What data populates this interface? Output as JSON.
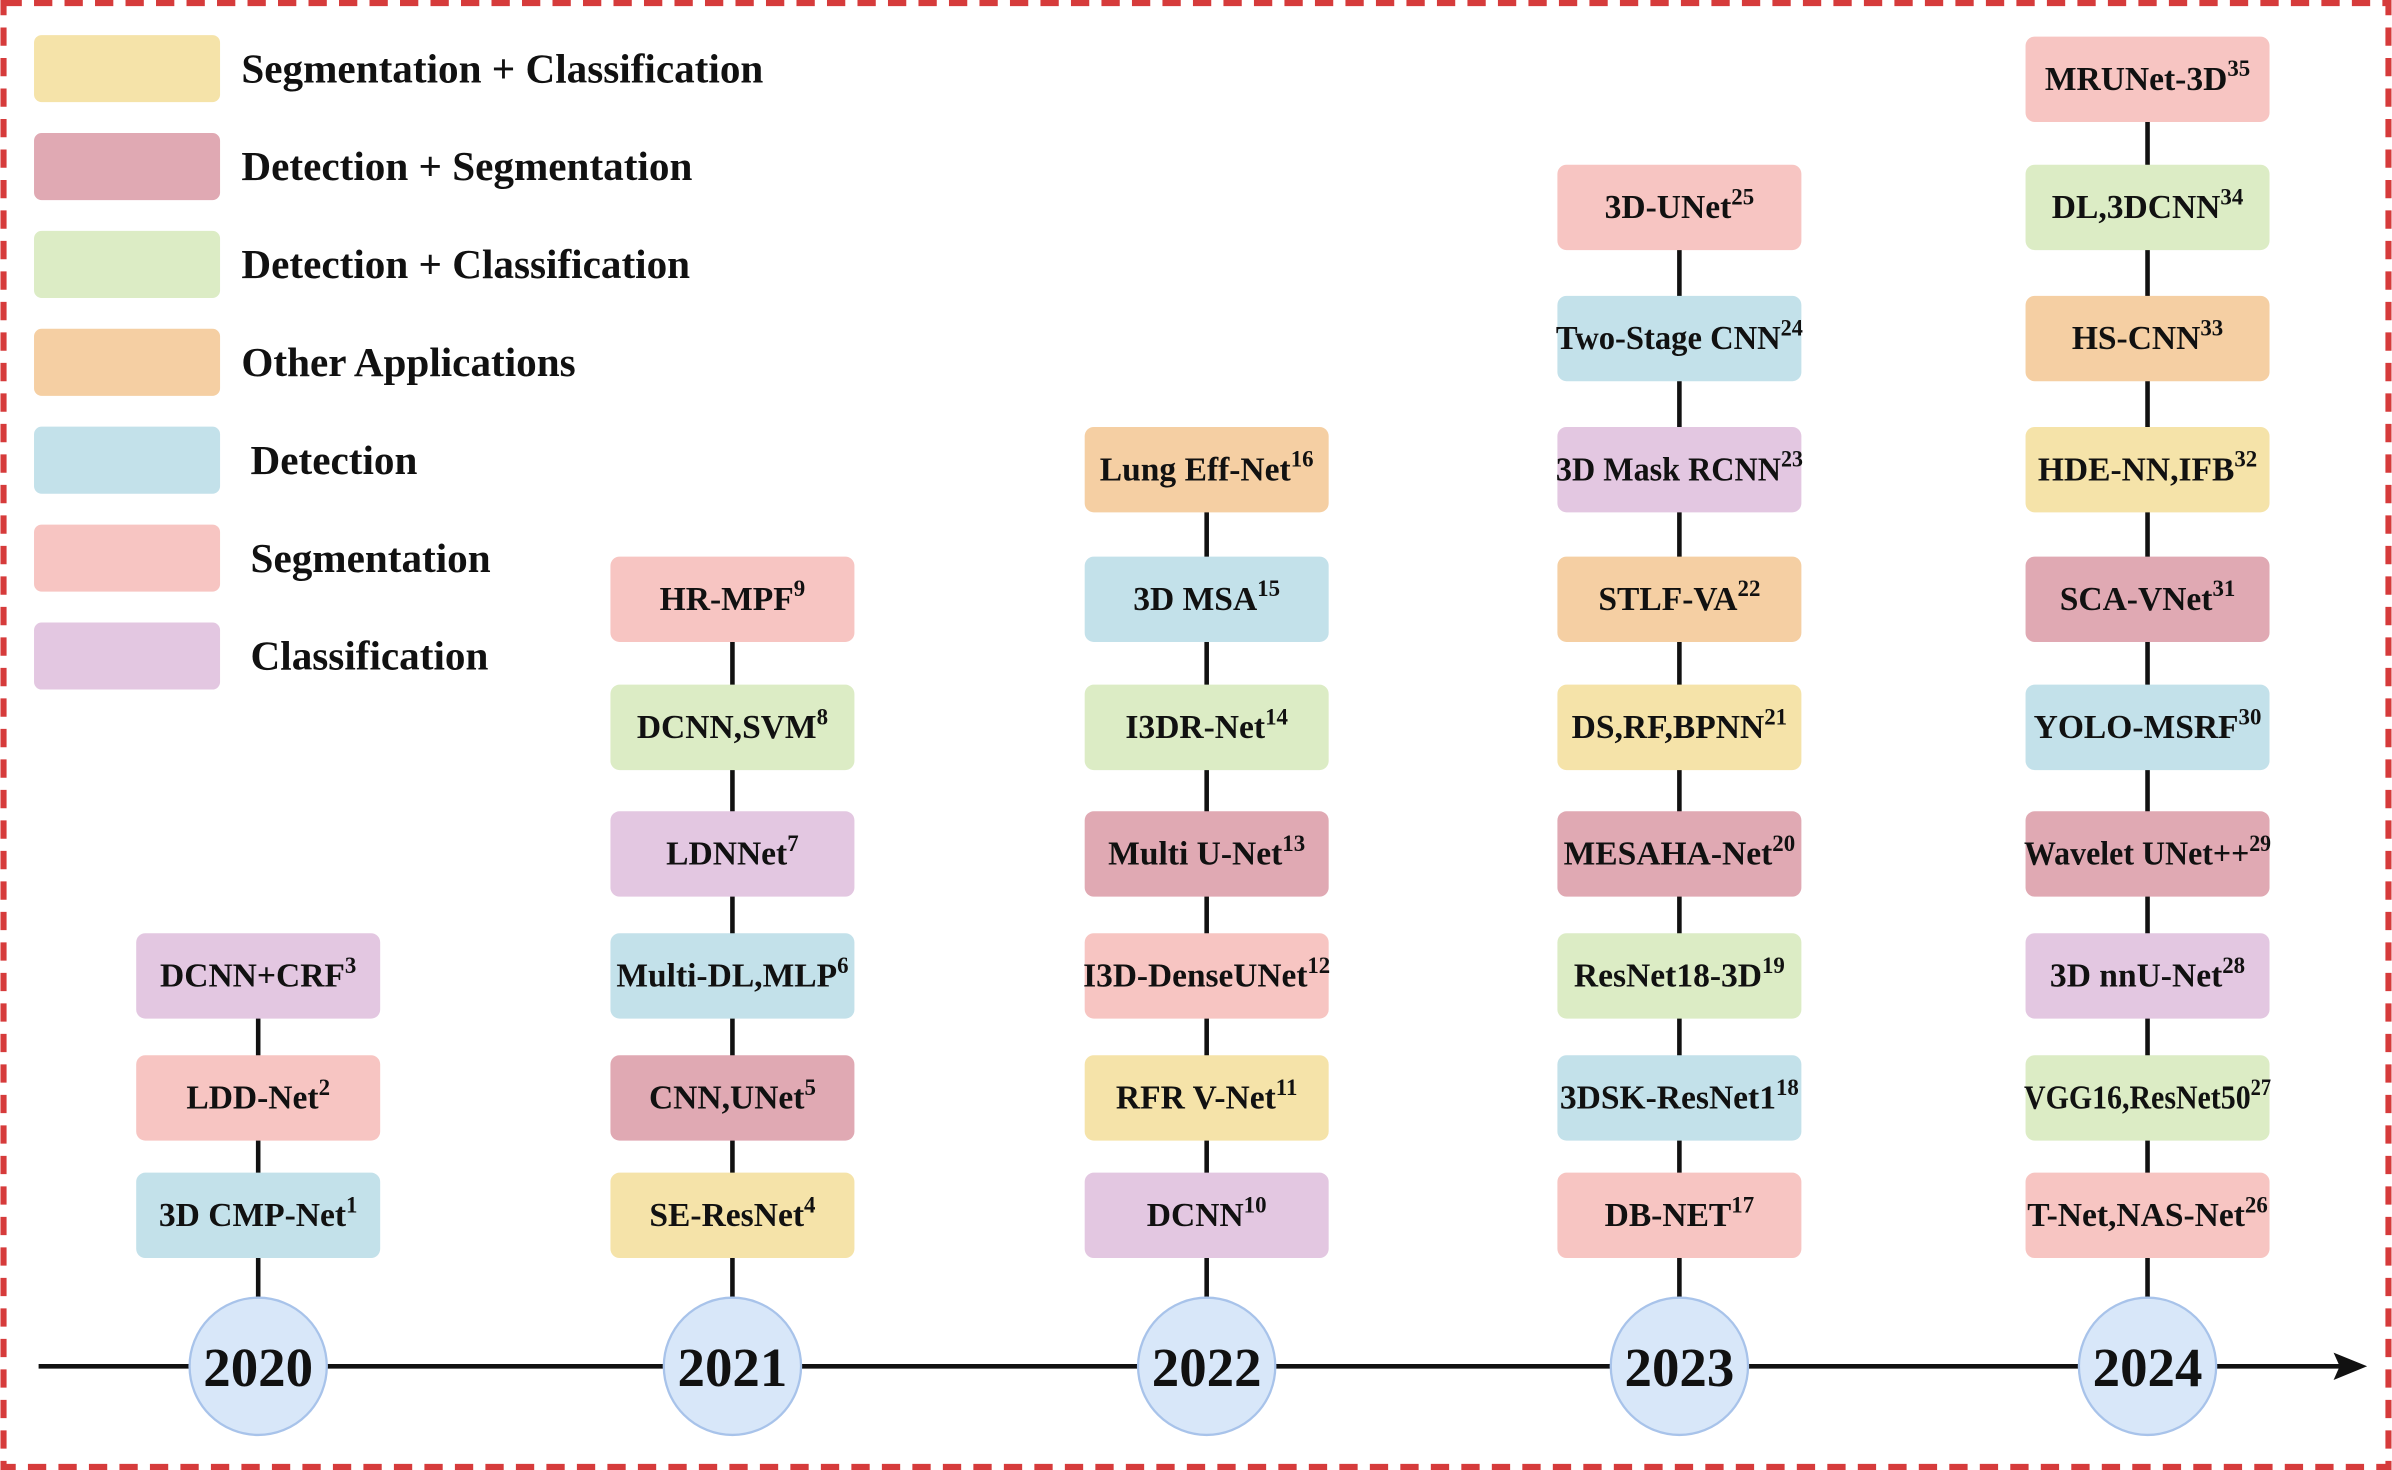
{
  "legend": [
    {
      "label": "Segmentation + Classification",
      "color": "#f5e3a9"
    },
    {
      "label": "Detection + Segmentation",
      "color": "#e0a9b3"
    },
    {
      "label": "Detection + Classification",
      "color": "#dcecc5"
    },
    {
      "label": "Other Applications",
      "color": "#f5cfa3"
    },
    {
      "label": "Detection",
      "color": "#c3e1ea"
    },
    {
      "label": "Segmentation",
      "color": "#f7c5c2"
    },
    {
      "label": "Classification",
      "color": "#e3c7e1"
    }
  ],
  "timeline": [
    {
      "year": "2020",
      "nodes": [
        {
          "label": "3D CMP-Net",
          "ref": 1,
          "color": "#c3e1ea"
        },
        {
          "label": "LDD-Net",
          "ref": 2,
          "color": "#f7c5c2"
        },
        {
          "label": "DCNN+CRF",
          "ref": 3,
          "color": "#e3c7e1"
        }
      ]
    },
    {
      "year": "2021",
      "nodes": [
        {
          "label": "SE-ResNet",
          "ref": 4,
          "color": "#f5e3a9"
        },
        {
          "label": "CNN,UNet",
          "ref": 5,
          "color": "#e0a9b3"
        },
        {
          "label": "Multi-DL,MLP",
          "ref": 6,
          "color": "#c3e1ea"
        },
        {
          "label": "LDNNet",
          "ref": 7,
          "color": "#e3c7e1"
        },
        {
          "label": "DCNN,SVM",
          "ref": 8,
          "color": "#dcecc5"
        },
        {
          "label": "HR-MPF",
          "ref": 9,
          "color": "#f7c5c2"
        }
      ]
    },
    {
      "year": "2022",
      "nodes": [
        {
          "label": "DCNN",
          "ref": 10,
          "color": "#e3c7e1"
        },
        {
          "label": "RFR V-Net",
          "ref": 11,
          "color": "#f5e3a9"
        },
        {
          "label": "I3D-DenseUNet",
          "ref": 12,
          "color": "#f7c5c2"
        },
        {
          "label": "Multi U-Net",
          "ref": 13,
          "color": "#e0a9b3"
        },
        {
          "label": "I3DR-Net",
          "ref": 14,
          "color": "#dcecc5"
        },
        {
          "label": "3D MSA",
          "ref": 15,
          "color": "#c3e1ea"
        },
        {
          "label": "Lung Eff-Net",
          "ref": 16,
          "color": "#f5cfa3"
        }
      ]
    },
    {
      "year": "2023",
      "nodes": [
        {
          "label": "DB-NET",
          "ref": 17,
          "color": "#f7c5c2"
        },
        {
          "label": "3DSK-ResNet1",
          "ref": 18,
          "color": "#c3e1ea"
        },
        {
          "label": "ResNet18-3D",
          "ref": 19,
          "color": "#dcecc5"
        },
        {
          "label": "MESAHA-Net",
          "ref": 20,
          "color": "#e0a9b3"
        },
        {
          "label": "DS,RF,BPNN",
          "ref": 21,
          "color": "#f5e3a9"
        },
        {
          "label": "STLF-VA",
          "ref": 22,
          "color": "#f5cfa3"
        },
        {
          "label": "3D Mask RCNN",
          "ref": 23,
          "color": "#e3c7e1"
        },
        {
          "label": "Two-Stage CNN",
          "ref": 24,
          "color": "#c3e1ea"
        },
        {
          "label": "3D-UNet",
          "ref": 25,
          "color": "#f7c5c2"
        }
      ]
    },
    {
      "year": "2024",
      "nodes": [
        {
          "label": "T-Net,NAS-Net",
          "ref": 26,
          "color": "#f7c5c2"
        },
        {
          "label": "VGG16,ResNet50",
          "ref": 27,
          "color": "#dcecc5"
        },
        {
          "label": "3D nnU-Net",
          "ref": 28,
          "color": "#e3c7e1"
        },
        {
          "label": "Wavelet UNet++",
          "ref": 29,
          "color": "#e0a9b3"
        },
        {
          "label": "YOLO-MSRF",
          "ref": 30,
          "color": "#c3e1ea"
        },
        {
          "label": "SCA-VNet",
          "ref": 31,
          "color": "#e0a9b3"
        },
        {
          "label": "HDE-NN,IFB",
          "ref": 32,
          "color": "#f5e3a9"
        },
        {
          "label": "HS-CNN",
          "ref": 33,
          "color": "#f5cfa3"
        },
        {
          "label": "DL,3DCNN",
          "ref": 34,
          "color": "#dcecc5"
        },
        {
          "label": "MRUNet-3D",
          "ref": 35,
          "color": "#f7c5c2"
        }
      ]
    }
  ]
}
